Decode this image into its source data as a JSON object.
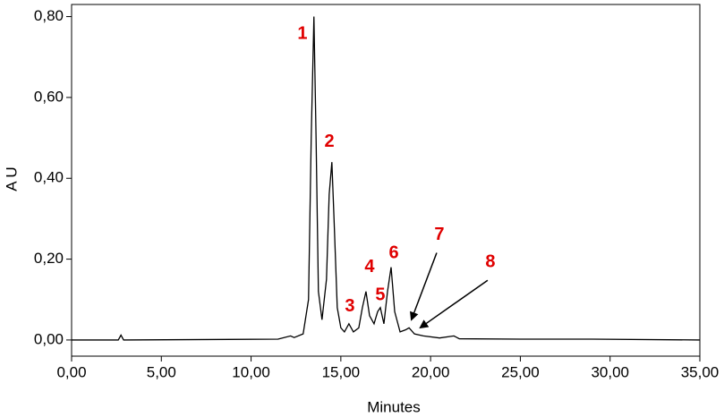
{
  "chart_data": {
    "type": "line",
    "xlabel": "Minutes",
    "ylabel": "A U",
    "x": [
      0,
      2.6,
      2.75,
      2.9,
      11.5,
      12.2,
      12.4,
      12.9,
      13.2,
      13.35,
      13.5,
      13.62,
      13.75,
      13.95,
      14.2,
      14.35,
      14.5,
      14.62,
      14.8,
      15.0,
      15.2,
      15.45,
      15.7,
      16.0,
      16.2,
      16.4,
      16.6,
      16.85,
      17.05,
      17.2,
      17.4,
      17.6,
      17.8,
      18.0,
      18.3,
      18.6,
      18.8,
      19.1,
      19.6,
      20.5,
      21.3,
      21.6,
      25,
      29,
      35
    ],
    "values": [
      0,
      0,
      0.012,
      0,
      0.002,
      0.01,
      0.006,
      0.015,
      0.1,
      0.5,
      0.8,
      0.5,
      0.12,
      0.05,
      0.15,
      0.36,
      0.44,
      0.3,
      0.08,
      0.03,
      0.02,
      0.04,
      0.02,
      0.03,
      0.08,
      0.12,
      0.06,
      0.04,
      0.07,
      0.08,
      0.04,
      0.12,
      0.18,
      0.07,
      0.02,
      0.025,
      0.03,
      0.015,
      0.01,
      0.005,
      0.01,
      0.003,
      0.002,
      0.002,
      0
    ],
    "color": "#000000",
    "xlim": [
      0,
      35
    ],
    "ylim": [
      -0.04,
      0.83
    ],
    "xticks": [
      {
        "value": 0,
        "label": "0,00"
      },
      {
        "value": 5,
        "label": "5,00"
      },
      {
        "value": 10,
        "label": "10,00"
      },
      {
        "value": 15,
        "label": "15,00"
      },
      {
        "value": 20,
        "label": "20,00"
      },
      {
        "value": 25,
        "label": "25,00"
      },
      {
        "value": 30,
        "label": "30,00"
      },
      {
        "value": 35,
        "label": "35,00"
      }
    ],
    "yticks": [
      {
        "value": 0,
        "label": "0,00"
      },
      {
        "value": 0.2,
        "label": "0,20"
      },
      {
        "value": 0.4,
        "label": "0,40"
      },
      {
        "value": 0.6,
        "label": "0,60"
      },
      {
        "value": 0.8,
        "label": "0,80"
      }
    ],
    "annotation_color": "#e00000",
    "annotations": [
      {
        "text": "1",
        "x": 12.86,
        "y": 0.756
      },
      {
        "text": "2",
        "x": 14.36,
        "y": 0.49
      },
      {
        "text": "3",
        "x": 15.5,
        "y": 0.082
      },
      {
        "text": "4",
        "x": 16.6,
        "y": 0.18
      },
      {
        "text": "5",
        "x": 17.2,
        "y": 0.11
      },
      {
        "text": "6",
        "x": 17.95,
        "y": 0.214
      },
      {
        "text": "7",
        "x": 20.49,
        "y": 0.26,
        "arrow_to": [
          18.94,
          0.051
        ]
      },
      {
        "text": "8",
        "x": 23.33,
        "y": 0.192,
        "arrow_to": [
          19.44,
          0.031
        ]
      }
    ]
  }
}
